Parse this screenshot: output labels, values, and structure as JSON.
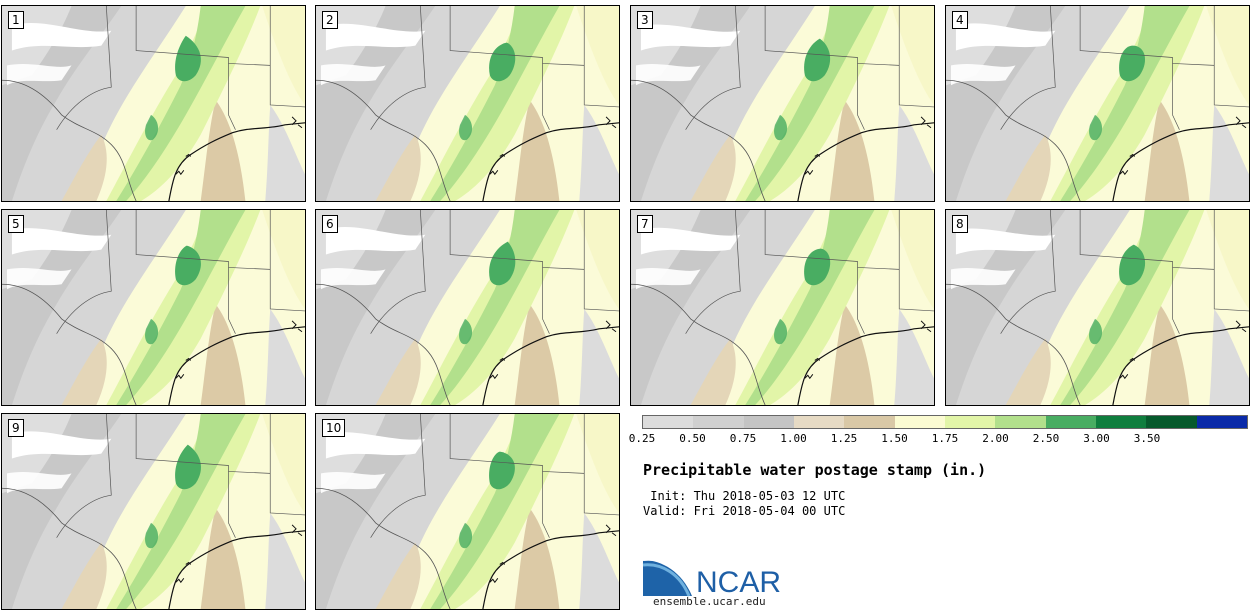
{
  "members": [
    "1",
    "2",
    "3",
    "4",
    "5",
    "6",
    "7",
    "8",
    "9",
    "10"
  ],
  "colorbar": {
    "ticks": [
      "0.25",
      "0.50",
      "0.75",
      "1.00",
      "1.25",
      "1.50",
      "1.75",
      "2.00",
      "2.50",
      "3.00",
      "3.50"
    ],
    "colors": [
      "#dcdcdc",
      "#d0d0d0",
      "#c4c4c4",
      "#e6dac4",
      "#d9c8a6",
      "#fbfbd2",
      "#e2f5a8",
      "#b2e08c",
      "#49ad62",
      "#0f7e3e",
      "#065a2c",
      "#0a2aa8"
    ]
  },
  "title": "Precipitable water postage stamp (in.)",
  "init_line": " Init: Thu 2018-05-03 12 UTC",
  "valid_line": "Valid: Fri 2018-05-04 00 UTC",
  "logo_text": "NCAR",
  "site": "ensemble.ucar.edu"
}
